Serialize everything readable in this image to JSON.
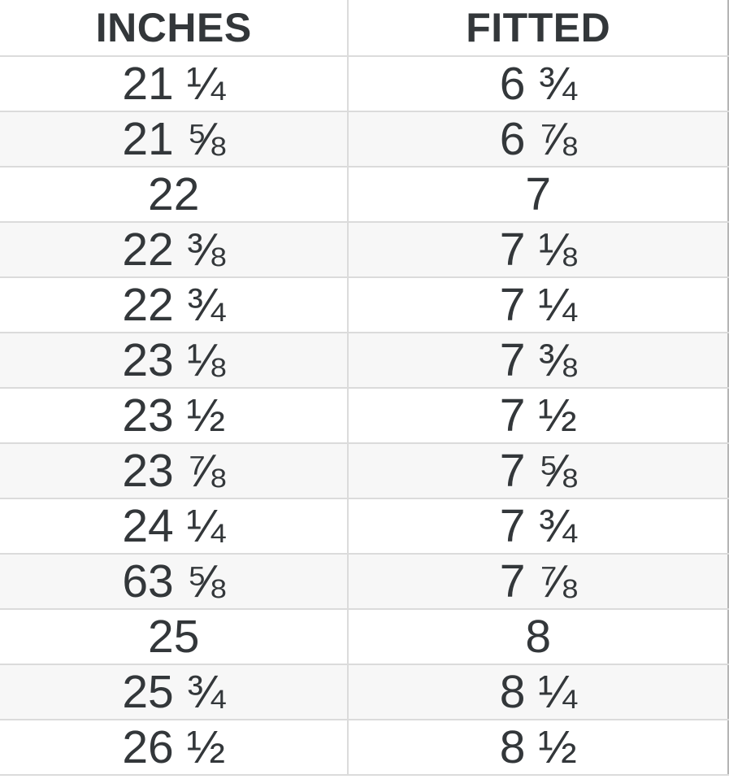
{
  "chart_data": {
    "type": "table",
    "columns": [
      "INCHES",
      "FITTED"
    ],
    "rows": [
      [
        "21 ¼",
        "6 ¾"
      ],
      [
        "21 ⅝",
        "6 ⅞"
      ],
      [
        "22",
        "7"
      ],
      [
        "22 ⅜",
        "7 ⅛"
      ],
      [
        "22 ¾",
        "7 ¼"
      ],
      [
        "23 ⅛",
        "7 ⅜"
      ],
      [
        "23 ½",
        "7 ½"
      ],
      [
        "23 ⅞",
        "7 ⅝"
      ],
      [
        "24 ¼",
        "7 ¾"
      ],
      [
        "63 ⅝",
        "7 ⅞"
      ],
      [
        "25",
        "8"
      ],
      [
        "25 ¾",
        "8 ¼"
      ],
      [
        "26 ½",
        "8 ½"
      ]
    ],
    "layout": {
      "grid": "horizontal-row-borders",
      "striped_rows": true,
      "text_align": "center"
    }
  },
  "colors": {
    "text": "#33373a",
    "row_border": "#dbdbdb",
    "alt_row_background": "#f7f7f7",
    "background": "#ffffff",
    "right_edge_border": "#b5b5b5"
  }
}
